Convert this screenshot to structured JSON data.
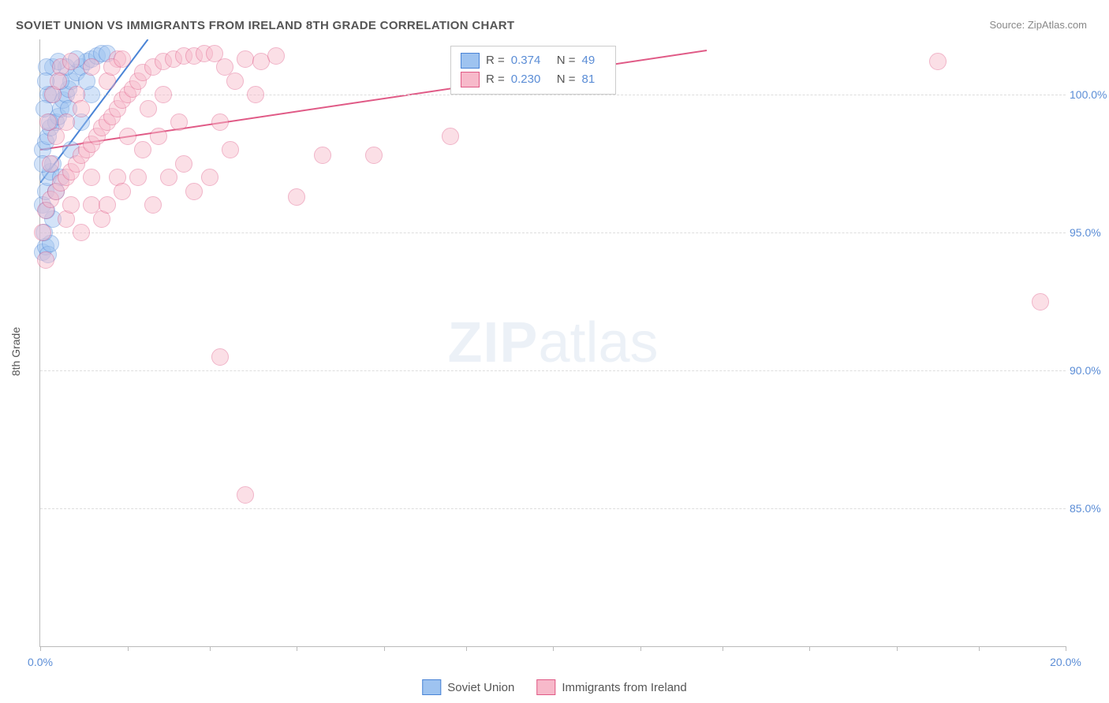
{
  "title": "SOVIET UNION VS IMMIGRANTS FROM IRELAND 8TH GRADE CORRELATION CHART",
  "source": "Source: ZipAtlas.com",
  "ylabel": "8th Grade",
  "watermark_a": "ZIP",
  "watermark_b": "atlas",
  "chart": {
    "type": "scatter",
    "xlim": [
      0,
      20
    ],
    "ylim": [
      80,
      102
    ],
    "yticks": [
      {
        "v": 85,
        "label": "85.0%"
      },
      {
        "v": 90,
        "label": "90.0%"
      },
      {
        "v": 95,
        "label": "95.0%"
      },
      {
        "v": 100,
        "label": "100.0%"
      }
    ],
    "xticks_major": [
      0,
      20
    ],
    "xtick_labels": {
      "0": "0.0%",
      "20": "20.0%"
    },
    "xticks_minor": [
      1.7,
      3.3,
      5.0,
      6.7,
      8.3,
      10.0,
      11.7,
      13.3,
      15.0,
      16.7,
      18.3
    ],
    "plot_bg": "#ffffff",
    "grid_color": "#dddddd",
    "axis_color": "#bbbbbb",
    "marker_radius": 10,
    "marker_opacity": 0.45,
    "series": [
      {
        "id": "soviet",
        "name": "Soviet Union",
        "color_fill": "#9ec3f0",
        "color_stroke": "#4a84d6",
        "R": "0.374",
        "N": "49",
        "trend": {
          "x1": 0,
          "y1": 96.8,
          "x2": 2.1,
          "y2": 102.0
        },
        "points": [
          [
            0.05,
            94.3
          ],
          [
            0.1,
            94.5
          ],
          [
            0.15,
            94.2
          ],
          [
            0.2,
            94.6
          ],
          [
            0.08,
            95.0
          ],
          [
            0.05,
            96.0
          ],
          [
            0.1,
            96.5
          ],
          [
            0.15,
            97.0
          ],
          [
            0.2,
            97.2
          ],
          [
            0.25,
            97.5
          ],
          [
            0.05,
            98.0
          ],
          [
            0.1,
            98.3
          ],
          [
            0.15,
            98.5
          ],
          [
            0.2,
            98.8
          ],
          [
            0.3,
            99.0
          ],
          [
            0.35,
            99.2
          ],
          [
            0.4,
            99.5
          ],
          [
            0.45,
            99.8
          ],
          [
            0.5,
            100.0
          ],
          [
            0.55,
            100.2
          ],
          [
            0.6,
            100.5
          ],
          [
            0.7,
            100.8
          ],
          [
            0.8,
            101.0
          ],
          [
            0.9,
            101.2
          ],
          [
            1.0,
            101.3
          ],
          [
            1.1,
            101.4
          ],
          [
            1.2,
            101.5
          ],
          [
            1.3,
            101.5
          ],
          [
            1.0,
            100.0
          ],
          [
            0.8,
            99.0
          ],
          [
            0.6,
            98.0
          ],
          [
            0.3,
            96.5
          ],
          [
            0.4,
            97.0
          ],
          [
            0.25,
            95.5
          ],
          [
            0.12,
            95.8
          ],
          [
            0.18,
            99.0
          ],
          [
            0.22,
            100.0
          ],
          [
            0.5,
            101.0
          ],
          [
            0.7,
            101.3
          ],
          [
            0.9,
            100.5
          ],
          [
            0.15,
            100.0
          ],
          [
            0.25,
            101.0
          ],
          [
            0.35,
            101.2
          ],
          [
            0.08,
            99.5
          ],
          [
            0.12,
            101.0
          ],
          [
            0.4,
            100.5
          ],
          [
            0.55,
            99.5
          ],
          [
            0.05,
            97.5
          ],
          [
            0.1,
            100.5
          ]
        ]
      },
      {
        "id": "ireland",
        "name": "Immigants from Ireland",
        "legend_name": "Immigrants from Ireland",
        "color_fill": "#f7b9ca",
        "color_stroke": "#e05a86",
        "R": "0.230",
        "N": "81",
        "trend": {
          "x1": 0,
          "y1": 98.0,
          "x2": 13.0,
          "y2": 101.6
        },
        "points": [
          [
            0.1,
            95.8
          ],
          [
            0.2,
            96.2
          ],
          [
            0.3,
            96.5
          ],
          [
            0.4,
            96.8
          ],
          [
            0.5,
            97.0
          ],
          [
            0.6,
            97.2
          ],
          [
            0.7,
            97.5
          ],
          [
            0.8,
            97.8
          ],
          [
            0.9,
            98.0
          ],
          [
            1.0,
            98.2
          ],
          [
            1.1,
            98.5
          ],
          [
            1.2,
            98.8
          ],
          [
            1.3,
            99.0
          ],
          [
            1.4,
            99.2
          ],
          [
            1.5,
            99.5
          ],
          [
            1.6,
            99.8
          ],
          [
            1.7,
            100.0
          ],
          [
            1.8,
            100.2
          ],
          [
            1.9,
            100.5
          ],
          [
            2.0,
            100.8
          ],
          [
            2.2,
            101.0
          ],
          [
            2.4,
            101.2
          ],
          [
            2.6,
            101.3
          ],
          [
            2.8,
            101.4
          ],
          [
            3.0,
            101.4
          ],
          [
            3.2,
            101.5
          ],
          [
            3.4,
            101.5
          ],
          [
            3.6,
            101.0
          ],
          [
            3.8,
            100.5
          ],
          [
            4.0,
            101.3
          ],
          [
            4.3,
            101.2
          ],
          [
            4.6,
            101.4
          ],
          [
            2.0,
            98.0
          ],
          [
            2.3,
            98.5
          ],
          [
            2.5,
            97.0
          ],
          [
            2.8,
            97.5
          ],
          [
            3.0,
            96.5
          ],
          [
            3.3,
            97.0
          ],
          [
            3.5,
            99.0
          ],
          [
            3.7,
            98.0
          ],
          [
            1.0,
            96.0
          ],
          [
            1.2,
            95.5
          ],
          [
            1.5,
            97.0
          ],
          [
            0.5,
            99.0
          ],
          [
            0.7,
            100.0
          ],
          [
            0.3,
            98.5
          ],
          [
            0.4,
            101.0
          ],
          [
            0.6,
            101.2
          ],
          [
            0.8,
            99.5
          ],
          [
            1.0,
            101.0
          ],
          [
            1.3,
            100.5
          ],
          [
            1.5,
            101.3
          ],
          [
            1.7,
            98.5
          ],
          [
            0.2,
            97.5
          ],
          [
            0.15,
            99.0
          ],
          [
            0.25,
            100.0
          ],
          [
            0.35,
            100.5
          ],
          [
            2.1,
            99.5
          ],
          [
            2.4,
            100.0
          ],
          [
            2.7,
            99.0
          ],
          [
            5.0,
            96.3
          ],
          [
            5.5,
            97.8
          ],
          [
            6.5,
            97.8
          ],
          [
            8.0,
            98.5
          ],
          [
            4.0,
            85.5
          ],
          [
            3.5,
            90.5
          ],
          [
            17.5,
            101.2
          ],
          [
            19.5,
            92.5
          ],
          [
            0.05,
            95.0
          ],
          [
            0.1,
            94.0
          ],
          [
            0.8,
            95.0
          ],
          [
            1.0,
            97.0
          ],
          [
            1.3,
            96.0
          ],
          [
            1.6,
            96.5
          ],
          [
            1.9,
            97.0
          ],
          [
            2.2,
            96.0
          ],
          [
            0.5,
            95.5
          ],
          [
            0.6,
            96.0
          ],
          [
            1.4,
            101.0
          ],
          [
            1.6,
            101.3
          ],
          [
            4.2,
            100.0
          ]
        ]
      }
    ]
  },
  "legend_top_pos": {
    "left_pct": 40,
    "top_pct": 1
  }
}
